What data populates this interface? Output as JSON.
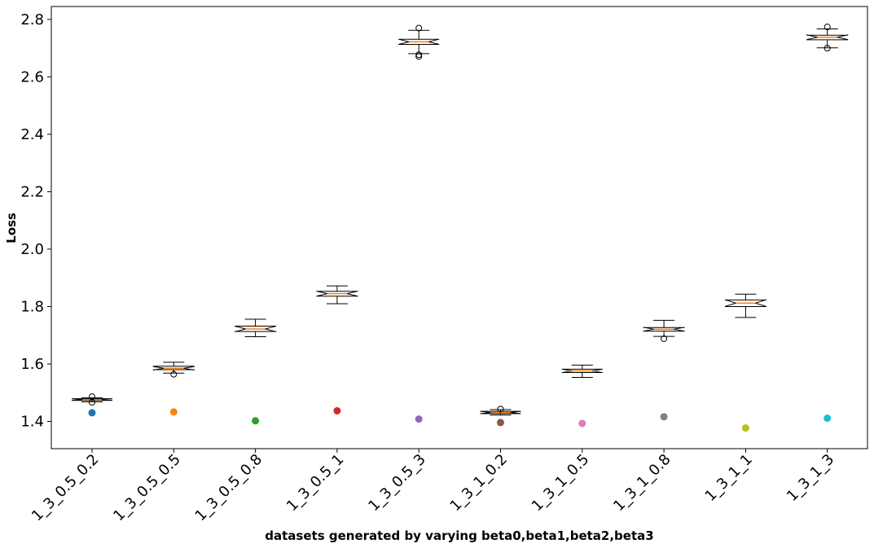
{
  "chart_data": {
    "type": "box",
    "xlabel": "datasets generated by varying beta0,beta1,beta2,beta3",
    "ylabel": "Loss",
    "ylim": [
      1.305,
      2.845
    ],
    "yticks": [
      1.4,
      1.6,
      1.8,
      2.0,
      2.2,
      2.4,
      2.6,
      2.8
    ],
    "categories": [
      "1_3_0.5_0.2",
      "1_3_0.5_0.5",
      "1_3_0.5_0.8",
      "1_3_0.5_1",
      "1_3_0.5_3",
      "1_3_1_0.2",
      "1_3_1_0.5",
      "1_3_1_0.8",
      "1_3_1_1",
      "1_3_1_3"
    ],
    "boxes": [
      {
        "whislo": 1.468,
        "q1": 1.473,
        "med": 1.476,
        "q3": 1.479,
        "whishi": 1.482,
        "fliers": [
          1.486,
          1.466
        ]
      },
      {
        "whislo": 1.568,
        "q1": 1.58,
        "med": 1.585,
        "q3": 1.592,
        "whishi": 1.606,
        "fliers": [
          1.564
        ]
      },
      {
        "whislo": 1.695,
        "q1": 1.713,
        "med": 1.722,
        "q3": 1.732,
        "whishi": 1.756,
        "fliers": []
      },
      {
        "whislo": 1.81,
        "q1": 1.836,
        "med": 1.845,
        "q3": 1.853,
        "whishi": 1.872,
        "fliers": []
      },
      {
        "whislo": 2.681,
        "q1": 2.713,
        "med": 2.722,
        "q3": 2.731,
        "whishi": 2.762,
        "fliers": [
          2.77,
          2.677,
          2.671
        ]
      },
      {
        "whislo": 1.422,
        "q1": 1.427,
        "med": 1.431,
        "q3": 1.435,
        "whishi": 1.441,
        "fliers": [
          1.443
        ]
      },
      {
        "whislo": 1.553,
        "q1": 1.57,
        "med": 1.576,
        "q3": 1.582,
        "whishi": 1.596,
        "fliers": []
      },
      {
        "whislo": 1.696,
        "q1": 1.714,
        "med": 1.721,
        "q3": 1.727,
        "whishi": 1.752,
        "fliers": [
          1.688
        ]
      },
      {
        "whislo": 1.762,
        "q1": 1.8,
        "med": 1.812,
        "q3": 1.823,
        "whishi": 1.843,
        "fliers": []
      },
      {
        "whislo": 2.701,
        "q1": 2.729,
        "med": 2.738,
        "q3": 2.745,
        "whishi": 2.767,
        "fliers": [
          2.774,
          2.7
        ]
      }
    ],
    "points": [
      1.43,
      1.433,
      1.402,
      1.437,
      1.408,
      1.396,
      1.393,
      1.416,
      1.377,
      1.411
    ],
    "point_colors": [
      "#1f77b4",
      "#ff7f0e",
      "#2ca02c",
      "#d62728",
      "#9467bd",
      "#8c564b",
      "#e377c2",
      "#7f7f7f",
      "#bcbd22",
      "#17becf"
    ],
    "median_color": "#ff7f0e",
    "box_fill": "#ffffff",
    "grid": false,
    "notched": true
  }
}
